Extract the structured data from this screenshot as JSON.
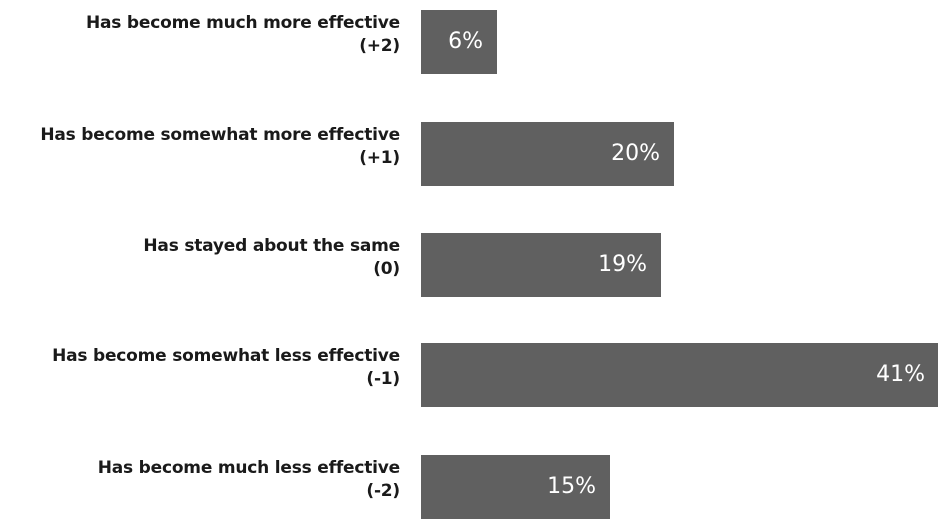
{
  "chart_data": {
    "type": "bar",
    "orientation": "horizontal",
    "categories": [
      {
        "line1": "Has become much more effective",
        "line2": "(+2)"
      },
      {
        "line1": "Has become somewhat more effective",
        "line2": "(+1)"
      },
      {
        "line1": "Has stayed about the same",
        "line2": "(0)"
      },
      {
        "line1": "Has become somewhat less effective",
        "line2": "(-1)"
      },
      {
        "line1": "Has become much less effective",
        "line2": "(-2)"
      }
    ],
    "values": [
      6,
      20,
      19,
      41,
      15
    ],
    "value_labels": [
      "6%",
      "20%",
      "19%",
      "41%",
      "15%"
    ],
    "unit": "%",
    "bar_color": "#606060",
    "grid": false,
    "legend": "none"
  }
}
